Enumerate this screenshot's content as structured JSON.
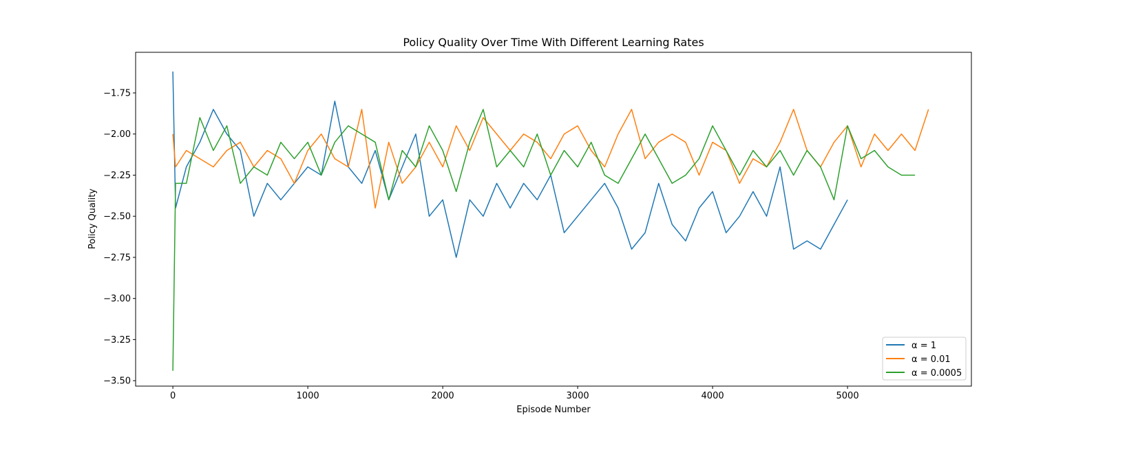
{
  "chart_data": {
    "type": "line",
    "title": "Policy Quality Over Time With Different Learning Rates",
    "x_label": "Episode Number",
    "y_label": "Policy Quality",
    "x": [
      0,
      20,
      100,
      200,
      300,
      400,
      500,
      600,
      700,
      800,
      900,
      1000,
      1100,
      1200,
      1300,
      1400,
      1500,
      1600,
      1700,
      1800,
      1900,
      2000,
      2100,
      2200,
      2300,
      2400,
      2500,
      2600,
      2700,
      2800,
      2900,
      3000,
      3100,
      3200,
      3300,
      3400,
      3500,
      3600,
      3700,
      3800,
      3900,
      4000,
      4100,
      4200,
      4300,
      4400,
      4500,
      4600,
      4700,
      4800,
      4900,
      5000,
      5100,
      5200,
      5300,
      5400,
      5500,
      5600
    ],
    "series": [
      {
        "name": "α = 1",
        "color": "#1f77b4",
        "values": [
          -1.62,
          -2.45,
          -2.2,
          -2.05,
          -1.85,
          -2.0,
          -2.1,
          -2.5,
          -2.3,
          -2.4,
          -2.3,
          -2.2,
          -2.25,
          -1.8,
          -2.2,
          -2.3,
          -2.1,
          -2.4,
          -2.2,
          -2.0,
          -2.5,
          -2.4,
          -2.75,
          -2.4,
          -2.5,
          -2.3,
          -2.45,
          -2.3,
          -2.4,
          -2.25,
          -2.6,
          -2.5,
          -2.4,
          -2.3,
          -2.45,
          -2.7,
          -2.6,
          -2.3,
          -2.55,
          -2.65,
          -2.45,
          -2.35,
          -2.6,
          -2.5,
          -2.35,
          -2.5,
          -2.2,
          -2.7,
          -2.65,
          -2.7,
          -2.55,
          -2.4,
          null,
          null,
          null,
          null,
          null,
          null
        ]
      },
      {
        "name": "α = 0.01",
        "color": "#ff7f0e",
        "values": [
          -2.0,
          -2.2,
          -2.1,
          -2.15,
          -2.2,
          -2.1,
          -2.05,
          -2.2,
          -2.1,
          -2.15,
          -2.3,
          -2.1,
          -2.0,
          -2.15,
          -2.2,
          -1.85,
          -2.45,
          -2.05,
          -2.3,
          -2.2,
          -2.05,
          -2.2,
          -1.95,
          -2.1,
          -1.9,
          -2.0,
          -2.1,
          -2.0,
          -2.05,
          -2.15,
          -2.0,
          -1.95,
          -2.1,
          -2.2,
          -2.0,
          -1.85,
          -2.15,
          -2.05,
          -2.0,
          -2.05,
          -2.25,
          -2.05,
          -2.1,
          -2.3,
          -2.15,
          -2.2,
          -2.05,
          -1.85,
          -2.1,
          -2.2,
          -2.05,
          -1.95,
          -2.2,
          -2.0,
          -2.1,
          -2.0,
          -2.1,
          -1.85
        ]
      },
      {
        "name": "α = 0.0005",
        "color": "#2ca02c",
        "values": [
          -3.44,
          -2.3,
          -2.3,
          -1.9,
          -2.1,
          -1.95,
          -2.3,
          -2.2,
          -2.25,
          -2.05,
          -2.15,
          -2.05,
          -2.25,
          -2.05,
          -1.95,
          -2.0,
          -2.05,
          -2.4,
          -2.1,
          -2.2,
          -1.95,
          -2.1,
          -2.35,
          -2.05,
          -1.85,
          -2.2,
          -2.1,
          -2.2,
          -2.0,
          -2.25,
          -2.1,
          -2.2,
          -2.05,
          -2.25,
          -2.3,
          -2.15,
          -2.0,
          -2.15,
          -2.3,
          -2.25,
          -2.15,
          -1.95,
          -2.1,
          -2.25,
          -2.1,
          -2.2,
          -2.1,
          -2.25,
          -2.1,
          -2.2,
          -2.4,
          -1.95,
          -2.15,
          -2.1,
          -2.2,
          -2.25,
          -2.25,
          null
        ]
      }
    ],
    "xlim": [
      -276,
      5918
    ],
    "ylim": [
      -3.533,
      -1.503
    ],
    "xticks": [
      0,
      1000,
      2000,
      3000,
      4000,
      5000
    ],
    "yticks": [
      {
        "value": -3.5,
        "label": "−3.50"
      },
      {
        "value": -3.25,
        "label": "−3.25"
      },
      {
        "value": -3.0,
        "label": "−3.00"
      },
      {
        "value": -2.75,
        "label": "−2.75"
      },
      {
        "value": -2.5,
        "label": "−2.50"
      },
      {
        "value": -2.25,
        "label": "−2.25"
      },
      {
        "value": -2.0,
        "label": "−2.00"
      },
      {
        "value": -1.75,
        "label": "−1.75"
      }
    ],
    "legend": "lower right"
  }
}
